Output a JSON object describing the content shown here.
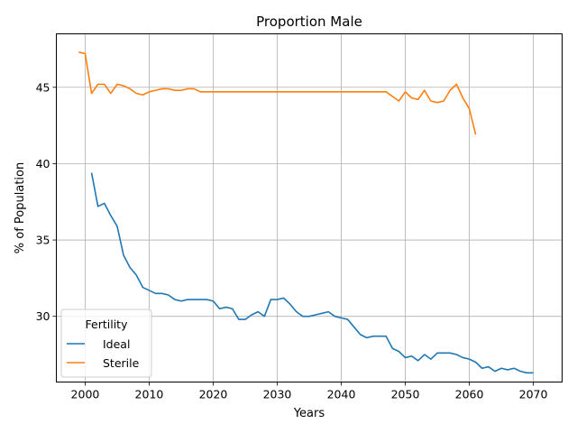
{
  "chart_data": {
    "type": "line",
    "title": "Proportion Male",
    "xlabel": "Years",
    "ylabel": "% of Population",
    "xlim": [
      1995.5,
      2074.5
    ],
    "ylim": [
      25.7,
      48.5
    ],
    "xticks": [
      2000,
      2010,
      2020,
      2030,
      2040,
      2050,
      2060,
      2070
    ],
    "yticks": [
      30,
      35,
      40,
      45
    ],
    "grid": true,
    "legend": {
      "title": "Fertility",
      "placement": "lower-left"
    },
    "series": [
      {
        "name": "Ideal",
        "color": "#1f77b4",
        "x": [
          2001,
          2002,
          2003,
          2004,
          2005,
          2006,
          2007,
          2008,
          2009,
          2010,
          2011,
          2012,
          2013,
          2014,
          2015,
          2016,
          2017,
          2018,
          2019,
          2020,
          2021,
          2022,
          2023,
          2024,
          2025,
          2026,
          2027,
          2028,
          2029,
          2030,
          2031,
          2032,
          2033,
          2034,
          2035,
          2036,
          2037,
          2038,
          2039,
          2040,
          2041,
          2042,
          2043,
          2044,
          2045,
          2046,
          2047,
          2048,
          2049,
          2050,
          2051,
          2052,
          2053,
          2054,
          2055,
          2056,
          2057,
          2058,
          2059,
          2060,
          2061,
          2062,
          2063,
          2064,
          2065,
          2066,
          2067,
          2068,
          2069,
          2070
        ],
        "y": [
          39.4,
          37.2,
          37.4,
          36.6,
          35.9,
          34.0,
          33.2,
          32.7,
          31.9,
          31.7,
          31.5,
          31.5,
          31.4,
          31.1,
          31.0,
          31.1,
          31.1,
          31.1,
          31.1,
          31.0,
          30.5,
          30.6,
          30.5,
          29.8,
          29.8,
          30.1,
          30.3,
          30.0,
          31.1,
          31.1,
          31.2,
          30.8,
          30.3,
          30.0,
          30.0,
          30.1,
          30.2,
          30.3,
          30.0,
          29.9,
          29.8,
          29.3,
          28.8,
          28.6,
          28.7,
          28.7,
          28.7,
          27.9,
          27.7,
          27.3,
          27.4,
          27.1,
          27.5,
          27.2,
          27.6,
          27.6,
          27.6,
          27.5,
          27.3,
          27.2,
          27.0,
          26.6,
          26.7,
          26.4,
          26.6,
          26.5,
          26.6,
          26.4,
          26.3,
          26.3
        ]
      },
      {
        "name": "Sterile",
        "color": "#ff7f0e",
        "x": [
          1999,
          2000,
          2001,
          2002,
          2003,
          2004,
          2005,
          2006,
          2007,
          2008,
          2009,
          2010,
          2011,
          2012,
          2013,
          2014,
          2015,
          2016,
          2017,
          2018,
          2019,
          2020,
          2021,
          2022,
          2023,
          2024,
          2025,
          2026,
          2027,
          2028,
          2029,
          2030,
          2031,
          2032,
          2033,
          2034,
          2035,
          2036,
          2037,
          2038,
          2039,
          2040,
          2041,
          2042,
          2043,
          2044,
          2045,
          2046,
          2047,
          2048,
          2049,
          2050,
          2051,
          2052,
          2053,
          2054,
          2055,
          2056,
          2057,
          2058,
          2059,
          2060,
          2061
        ],
        "y": [
          47.3,
          47.2,
          44.6,
          45.2,
          45.2,
          44.6,
          45.2,
          45.1,
          44.9,
          44.6,
          44.5,
          44.7,
          44.8,
          44.9,
          44.9,
          44.8,
          44.8,
          44.9,
          44.9,
          44.7,
          44.7,
          44.7,
          44.7,
          44.7,
          44.7,
          44.7,
          44.7,
          44.7,
          44.7,
          44.7,
          44.7,
          44.7,
          44.7,
          44.7,
          44.7,
          44.7,
          44.7,
          44.7,
          44.7,
          44.7,
          44.7,
          44.7,
          44.7,
          44.7,
          44.7,
          44.7,
          44.7,
          44.7,
          44.7,
          44.4,
          44.1,
          44.7,
          44.3,
          44.2,
          44.8,
          44.1,
          44.0,
          44.1,
          44.8,
          45.2,
          44.3,
          43.6,
          41.9
        ]
      }
    ]
  }
}
